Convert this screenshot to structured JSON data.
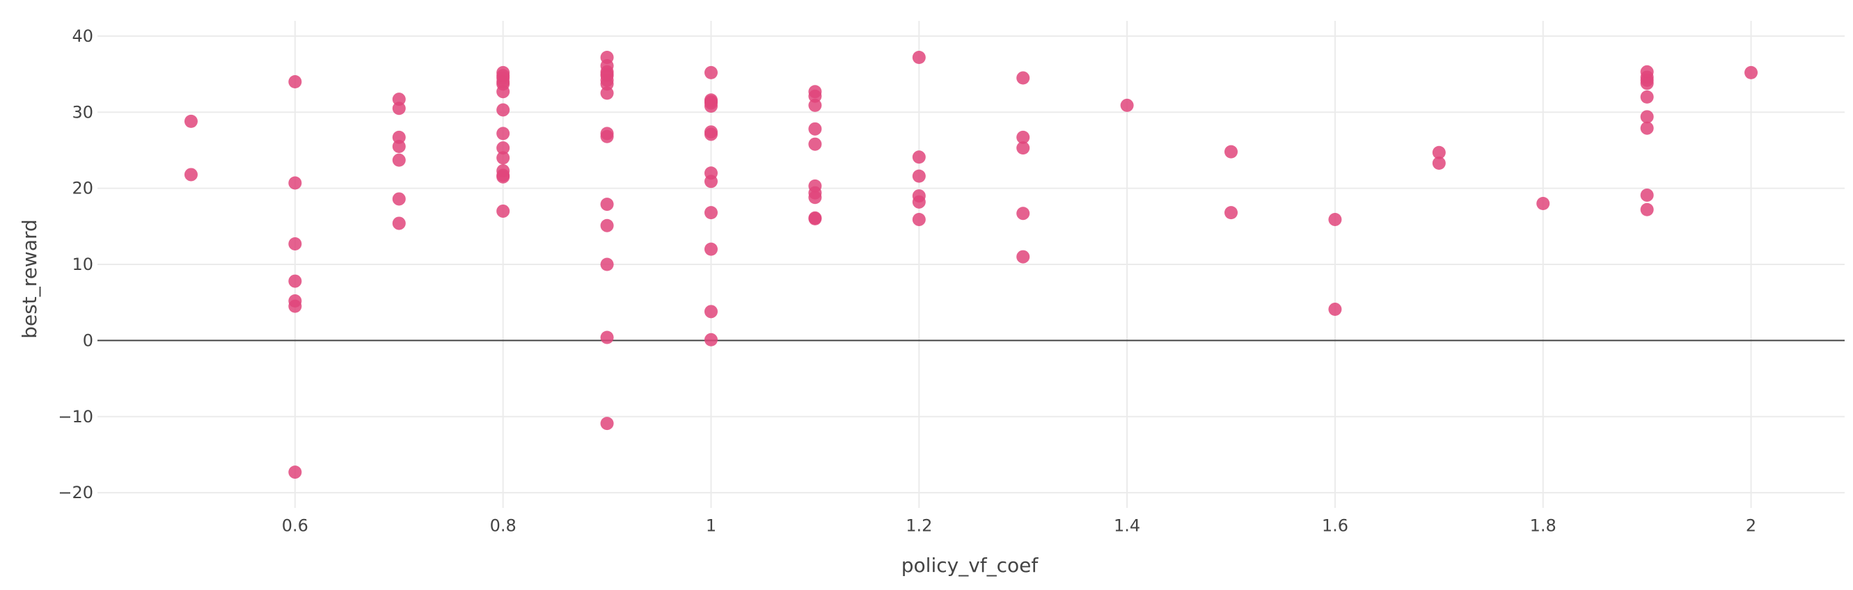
{
  "chart_data": {
    "type": "scatter",
    "title": "",
    "xlabel": "policy_vf_coef",
    "ylabel": "best_reward",
    "xlim": [
      0.41,
      2.09
    ],
    "ylim": [
      -22,
      42
    ],
    "x_ticks": [
      0.6,
      0.8,
      1,
      1.2,
      1.4,
      1.6,
      1.8,
      2
    ],
    "x_tick_labels": [
      "0.6",
      "0.8",
      "1",
      "1.2",
      "1.4",
      "1.6",
      "1.8",
      "2"
    ],
    "y_ticks": [
      -20,
      -10,
      0,
      10,
      20,
      30,
      40
    ],
    "y_tick_labels": [
      "−20",
      "−10",
      "0",
      "10",
      "20",
      "30",
      "40"
    ],
    "grid": true,
    "zero_line": true,
    "marker_color": "#e0457b",
    "series": [
      {
        "x": [
          0.5,
          0.5,
          0.6,
          0.6,
          0.6,
          0.6,
          0.6,
          0.6,
          0.6,
          0.7,
          0.7,
          0.7,
          0.7,
          0.7,
          0.7,
          0.7,
          0.8,
          0.8,
          0.8,
          0.8,
          0.8,
          0.8,
          0.8,
          0.8,
          0.8,
          0.8,
          0.8,
          0.8,
          0.8,
          0.8,
          0.9,
          0.9,
          0.9,
          0.9,
          0.9,
          0.9,
          0.9,
          0.9,
          0.9,
          0.9,
          0.9,
          0.9,
          0.9,
          0.9,
          0.9,
          1,
          1,
          1,
          1,
          1,
          1,
          1,
          1,
          1,
          1,
          1,
          1,
          1,
          1.1,
          1.1,
          1.1,
          1.1,
          1.1,
          1.1,
          1.1,
          1.1,
          1.1,
          1.1,
          1.2,
          1.2,
          1.2,
          1.2,
          1.2,
          1.2,
          1.3,
          1.3,
          1.3,
          1.3,
          1.3,
          1.4,
          1.5,
          1.5,
          1.6,
          1.6,
          1.7,
          1.7,
          1.8,
          1.9,
          1.9,
          1.9,
          1.9,
          1.9,
          1.9,
          1.9,
          1.9,
          1.9,
          2
        ],
        "y": [
          28.8,
          21.8,
          34.0,
          20.7,
          12.7,
          7.8,
          5.2,
          4.5,
          -17.3,
          31.7,
          30.5,
          26.7,
          25.5,
          23.7,
          18.6,
          15.4,
          35.2,
          34.5,
          34.0,
          33.7,
          32.7,
          30.3,
          27.2,
          25.3,
          24.0,
          22.3,
          21.7,
          21.5,
          17.0,
          34.8,
          37.2,
          36.1,
          35.3,
          34.8,
          34.2,
          33.7,
          32.5,
          27.2,
          26.8,
          17.9,
          15.1,
          10.0,
          0.4,
          -10.9,
          35.0,
          35.2,
          31.6,
          31.4,
          30.8,
          27.4,
          27.1,
          22.0,
          20.9,
          16.8,
          12.0,
          3.8,
          0.1,
          31.2,
          32.7,
          32.1,
          30.9,
          27.8,
          25.8,
          20.3,
          19.4,
          18.8,
          16.0,
          16.1,
          37.2,
          24.1,
          21.6,
          19.0,
          18.2,
          15.9,
          34.5,
          26.7,
          25.3,
          16.7,
          11.0,
          30.9,
          24.8,
          16.8,
          15.9,
          4.1,
          24.7,
          23.3,
          18.0,
          35.3,
          34.6,
          34.2,
          33.8,
          32.0,
          29.4,
          27.9,
          19.1,
          17.2,
          35.2
        ]
      }
    ]
  }
}
